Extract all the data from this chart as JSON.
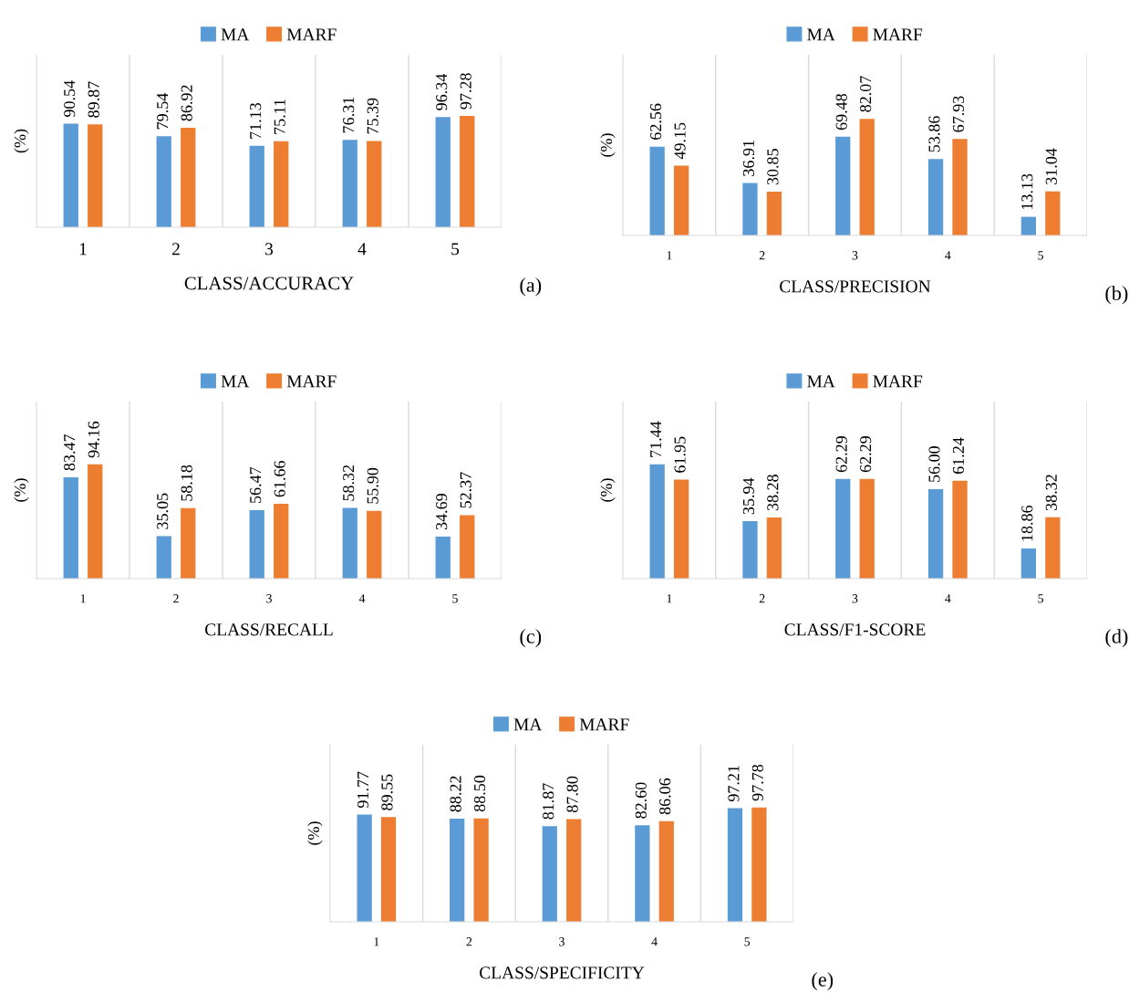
{
  "chart_data": [
    {
      "type": "bar",
      "categories": [
        "1",
        "2",
        "3",
        "4",
        "5"
      ],
      "xlabel": "CLASS/ACCURACY",
      "ylabel": "(%)",
      "annotations": [
        "(a)"
      ],
      "legend": "top",
      "data_labels": true,
      "grid": "x",
      "tick_labels": "x",
      "series": [
        {
          "name": "MA",
          "color": "#5b9bd5",
          "values": [
            90.54,
            79.54,
            71.13,
            76.31,
            96.34
          ],
          "value_labels": [
            "90.54",
            "79.54",
            "71.13",
            "76.31",
            "96.34"
          ]
        },
        {
          "name": "MARF",
          "color": "#ed7d31",
          "values": [
            89.87,
            86.92,
            75.11,
            75.39,
            97.28
          ],
          "value_labels": [
            "89.87",
            "86.92",
            "75.11",
            "75.39",
            "97.28"
          ]
        }
      ]
    },
    {
      "type": "bar",
      "categories": [
        "1",
        "2",
        "3",
        "4",
        "5"
      ],
      "xlabel": "CLASS/PRECISION",
      "ylabel": "(%)",
      "annotations": [
        "(b)"
      ],
      "legend": "top",
      "data_labels": true,
      "grid": "x",
      "tick_labels": "x",
      "series": [
        {
          "name": "MA",
          "color": "#5b9bd5",
          "values": [
            62.56,
            36.91,
            69.48,
            53.86,
            13.13
          ],
          "value_labels": [
            "62.56",
            "36.91",
            "69.48",
            "53.86",
            "13.13"
          ]
        },
        {
          "name": "MARF",
          "color": "#ed7d31",
          "values": [
            49.15,
            30.85,
            82.07,
            67.93,
            31.04
          ],
          "value_labels": [
            "49.15",
            "30.85",
            "82.07",
            "67.93",
            "31.04"
          ]
        }
      ]
    },
    {
      "type": "bar",
      "categories": [
        "1",
        "2",
        "3",
        "4",
        "5"
      ],
      "xlabel": "CLASS/RECALL",
      "ylabel": "(%)",
      "annotations": [
        "(c)"
      ],
      "legend": "top",
      "data_labels": true,
      "grid": "x",
      "tick_labels": "x",
      "series": [
        {
          "name": "MA",
          "color": "#5b9bd5",
          "values": [
            83.47,
            35.05,
            56.47,
            58.32,
            34.69
          ],
          "value_labels": [
            "83.47",
            "35.05",
            "56.47",
            "58.32",
            "34.69"
          ]
        },
        {
          "name": "MARF",
          "color": "#ed7d31",
          "values": [
            94.16,
            58.18,
            61.66,
            55.9,
            52.37
          ],
          "value_labels": [
            "94.16",
            "58.18",
            "61.66",
            "55.90",
            "52.37"
          ]
        }
      ]
    },
    {
      "type": "bar",
      "categories": [
        "1",
        "2",
        "3",
        "4",
        "5"
      ],
      "xlabel": "CLASS/F1-SCORE",
      "ylabel": "(%)",
      "annotations": [
        "(d)"
      ],
      "legend": "top",
      "data_labels": true,
      "grid": "x",
      "tick_labels": "x",
      "series": [
        {
          "name": "MA",
          "color": "#5b9bd5",
          "values": [
            71.44,
            35.94,
            62.29,
            56.0,
            18.86
          ],
          "value_labels": [
            "71.44",
            "35.94",
            "62.29",
            "56.00",
            "18.86"
          ]
        },
        {
          "name": "MARF",
          "color": "#ed7d31",
          "values": [
            61.95,
            38.28,
            62.29,
            61.24,
            38.32
          ],
          "value_labels": [
            "61.95",
            "38.28",
            "62.29",
            "61.24",
            "38.32"
          ]
        }
      ]
    },
    {
      "type": "bar",
      "categories": [
        "1",
        "2",
        "3",
        "4",
        "5"
      ],
      "xlabel": "CLASS/SPECIFICITY",
      "ylabel": "(%)",
      "annotations": [
        "(e)"
      ],
      "legend": "top",
      "data_labels": true,
      "grid": "x",
      "tick_labels": "x",
      "series": [
        {
          "name": "MA",
          "color": "#5b9bd5",
          "values": [
            91.77,
            88.22,
            81.87,
            82.6,
            97.21
          ],
          "value_labels": [
            "91.77",
            "88.22",
            "81.87",
            "82.60",
            "97.21"
          ]
        },
        {
          "name": "MARF",
          "color": "#ed7d31",
          "values": [
            89.55,
            88.5,
            87.8,
            86.06,
            97.78
          ],
          "value_labels": [
            "89.55",
            "88.50",
            "87.80",
            "86.06",
            "97.78"
          ]
        }
      ]
    }
  ]
}
